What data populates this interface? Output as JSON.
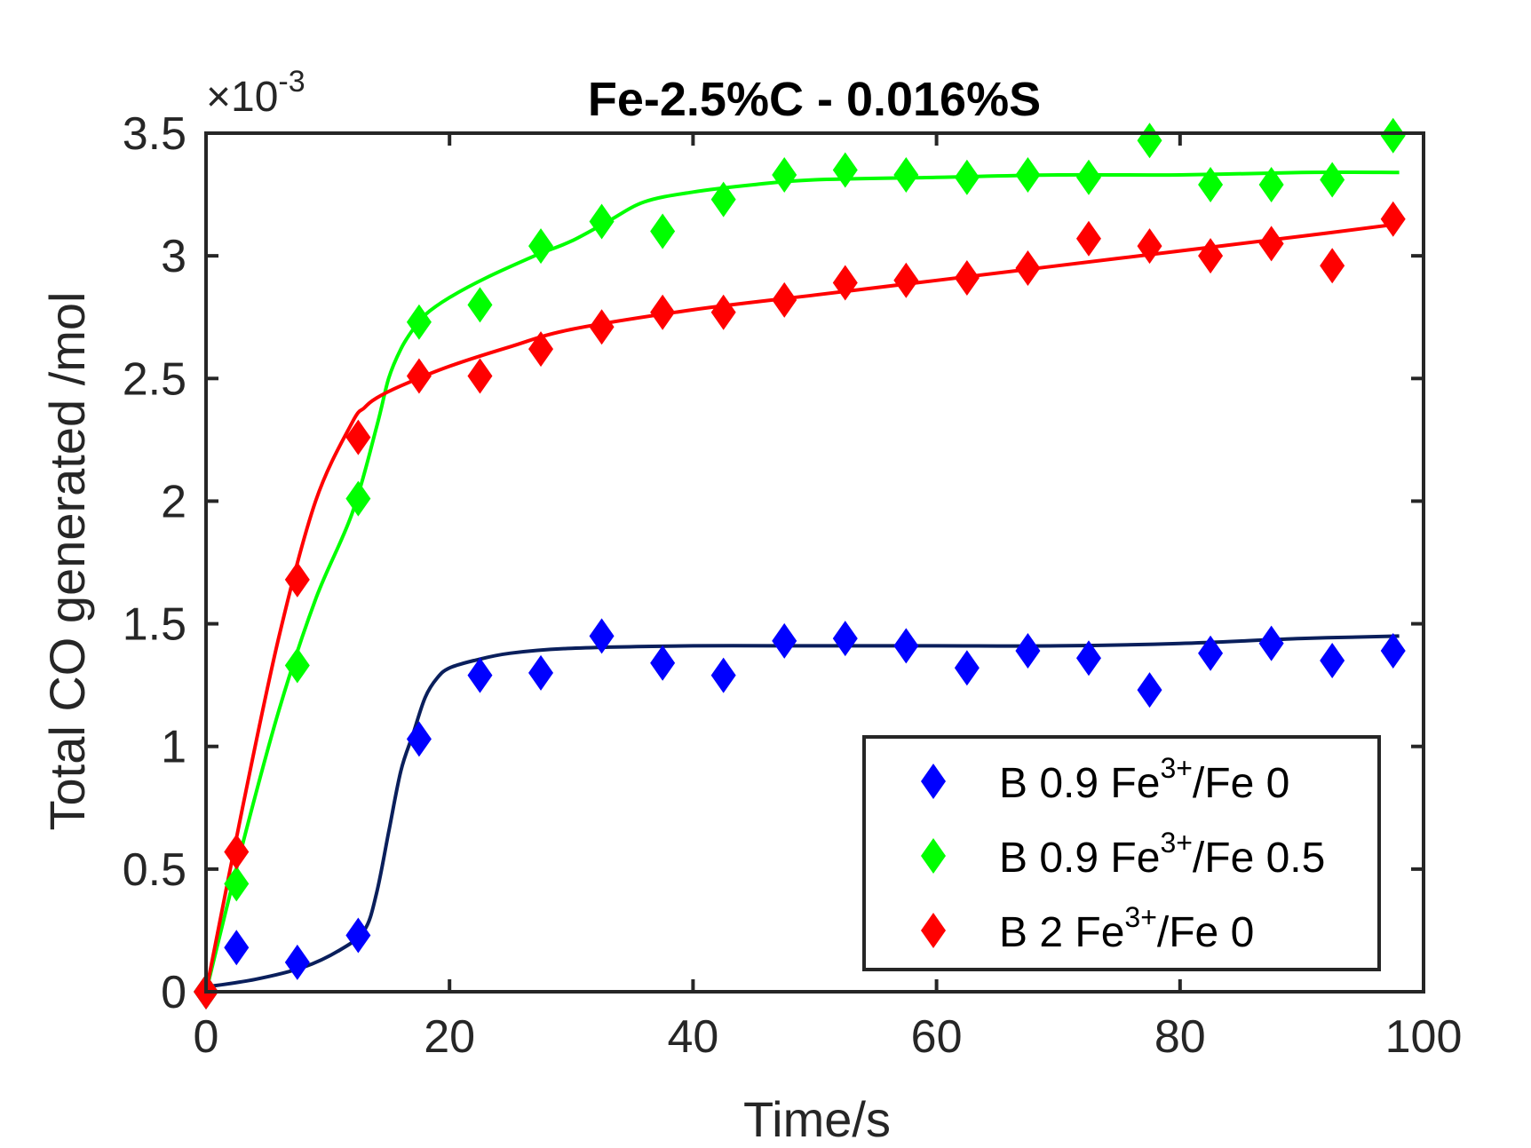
{
  "chart_data": {
    "type": "scatter",
    "title": "Fe-2.5%C - 0.016%S",
    "xlabel": "Time/s",
    "ylabel": "Total CO generated /mol",
    "xlim": [
      0,
      100
    ],
    "ylim": [
      0,
      0.0035
    ],
    "x_ticks": [
      "0",
      "20",
      "40",
      "60",
      "80",
      "100"
    ],
    "y_ticks": [
      "0",
      "0.5",
      "1",
      "1.5",
      "2",
      "2.5",
      "3",
      "3.5"
    ],
    "y_multiplier": {
      "base": "×10",
      "exponent": "-3"
    },
    "grid": false,
    "legend_position": "bottom-right",
    "series": [
      {
        "name_base": "B 0.9 Fe",
        "name_sup": "3+",
        "name_tail": "/Fe 0",
        "marker_color": "#0000ff",
        "fit_color": "#0a1f5c",
        "x": [
          0,
          2.5,
          7.5,
          12.5,
          17.5,
          22.5,
          27.5,
          32.5,
          37.5,
          42.5,
          47.5,
          52.5,
          57.5,
          62.5,
          67.5,
          72.5,
          77.5,
          82.5,
          87.5,
          92.5,
          97.5
        ],
        "y": [
          0.0,
          0.00018,
          0.00012,
          0.00023,
          0.00103,
          0.00129,
          0.0013,
          0.00145,
          0.00134,
          0.00129,
          0.00143,
          0.00144,
          0.00141,
          0.00132,
          0.00139,
          0.00136,
          0.00123,
          0.00138,
          0.00142,
          0.00135,
          0.00139
        ],
        "fit_x": [
          0,
          4,
          8,
          11,
          13,
          14,
          15,
          16,
          17,
          18,
          19,
          20,
          22,
          25,
          30,
          40,
          50,
          60,
          70,
          80,
          90,
          98
        ],
        "fit_y": [
          2e-05,
          5e-05,
          0.0001,
          0.00017,
          0.00025,
          0.0004,
          0.00065,
          0.0009,
          0.00105,
          0.0012,
          0.00128,
          0.00132,
          0.00135,
          0.00138,
          0.0014,
          0.00141,
          0.00141,
          0.00141,
          0.00141,
          0.00142,
          0.00144,
          0.00145
        ]
      },
      {
        "name_base": "B 0.9 Fe",
        "name_sup": "3+",
        "name_tail": "/Fe 0.5",
        "marker_color": "#00ff00",
        "fit_color": "#00ff00",
        "x": [
          0,
          2.5,
          7.5,
          12.5,
          17.5,
          22.5,
          27.5,
          32.5,
          37.5,
          42.5,
          47.5,
          52.5,
          57.5,
          62.5,
          67.5,
          72.5,
          77.5,
          82.5,
          87.5,
          92.5,
          97.5
        ],
        "y": [
          0.0,
          0.00044,
          0.00133,
          0.00201,
          0.00273,
          0.0028,
          0.00304,
          0.00314,
          0.0031,
          0.00323,
          0.00333,
          0.00335,
          0.00333,
          0.00332,
          0.00333,
          0.00332,
          0.00347,
          0.00329,
          0.00329,
          0.00331,
          0.00349
        ],
        "fit_x": [
          0,
          3,
          6,
          9,
          12,
          14,
          15,
          16,
          17,
          18,
          20,
          23,
          27,
          30,
          33,
          36,
          40,
          45,
          50,
          60,
          70,
          80,
          90,
          98
        ],
        "fit_y": [
          0.0,
          0.0006,
          0.00115,
          0.0016,
          0.00195,
          0.0023,
          0.0025,
          0.00262,
          0.0027,
          0.00276,
          0.00283,
          0.00291,
          0.003,
          0.00306,
          0.00314,
          0.00322,
          0.00326,
          0.00329,
          0.00331,
          0.00332,
          0.00333,
          0.00333,
          0.00334,
          0.00334
        ]
      },
      {
        "name_base": "B 2 Fe",
        "name_sup": "3+",
        "name_tail": "/Fe 0",
        "marker_color": "#ff0000",
        "fit_color": "#ff0000",
        "x": [
          0,
          2.5,
          7.5,
          12.5,
          17.5,
          22.5,
          27.5,
          32.5,
          37.5,
          42.5,
          47.5,
          52.5,
          57.5,
          62.5,
          67.5,
          72.5,
          77.5,
          82.5,
          87.5,
          92.5,
          97.5
        ],
        "y": [
          0.0,
          0.00057,
          0.00168,
          0.00226,
          0.00251,
          0.00251,
          0.00262,
          0.00271,
          0.00277,
          0.00277,
          0.00282,
          0.00289,
          0.0029,
          0.00291,
          0.00295,
          0.00307,
          0.00304,
          0.003,
          0.00305,
          0.00296,
          0.00315
        ],
        "fit_x": [
          0,
          3,
          6,
          9,
          12,
          13,
          14,
          16,
          20,
          25,
          30,
          40,
          50,
          60,
          70,
          80,
          90,
          98
        ],
        "fit_y": [
          0.0,
          0.00075,
          0.00145,
          0.002,
          0.00232,
          0.00238,
          0.00242,
          0.00247,
          0.00255,
          0.00263,
          0.0027,
          0.00278,
          0.00284,
          0.0029,
          0.00296,
          0.00302,
          0.00308,
          0.00313
        ]
      }
    ]
  }
}
